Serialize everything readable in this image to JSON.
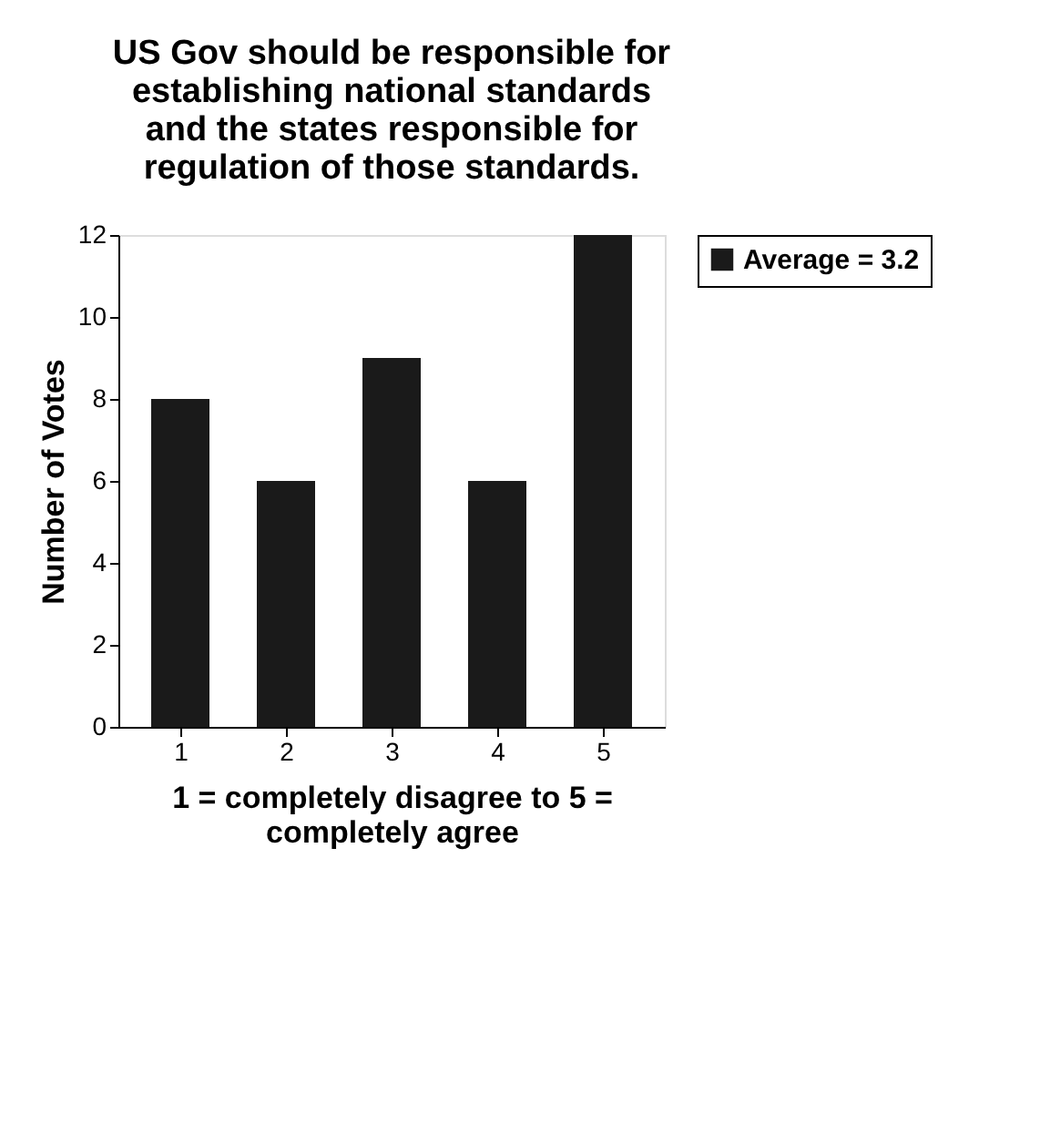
{
  "chart_data": {
    "type": "bar",
    "title": "US Gov should be responsible for\nestablishing national standards\nand the states responsible for\nregulation of those standards.",
    "xlabel": "1 = completely disagree to 5 =\ncompletely agree",
    "ylabel": "Number of Votes",
    "categories": [
      "1",
      "2",
      "3",
      "4",
      "5"
    ],
    "series": [
      {
        "name": "Average = 3.2",
        "color": "#1a1a1a",
        "values": [
          8,
          6,
          9,
          6,
          12
        ]
      }
    ],
    "ylim": [
      0,
      12
    ],
    "yticks": [
      0,
      2,
      4,
      6,
      8,
      10,
      12
    ],
    "grid": false,
    "legend": "right"
  }
}
